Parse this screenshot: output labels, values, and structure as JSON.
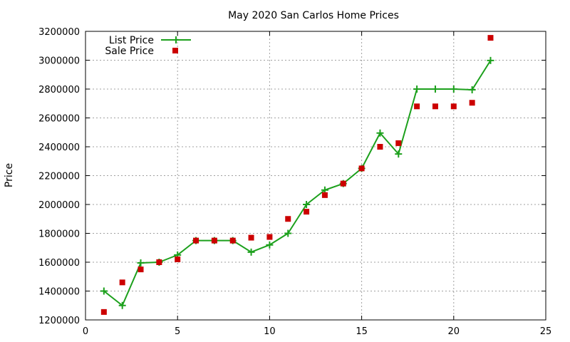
{
  "chart_data": {
    "type": "line",
    "title": "May 2020 San Carlos Home Prices",
    "xlabel": "",
    "ylabel": "Price",
    "xlim": [
      0,
      25
    ],
    "ylim": [
      1200000,
      3200000
    ],
    "xticks": [
      "0",
      "5",
      "10",
      "15",
      "20",
      "25"
    ],
    "yticks": [
      "1200000",
      "1400000",
      "1600000",
      "1800000",
      "2000000",
      "2200000",
      "2400000",
      "2600000",
      "2800000",
      "3000000",
      "3200000"
    ],
    "grid": true,
    "legend_position": "top-left",
    "series": [
      {
        "name": "List Price",
        "style": "line-with-plus-markers",
        "color": "#1ca01c",
        "x": [
          1,
          2,
          3,
          4,
          5,
          6,
          7,
          8,
          9,
          10,
          11,
          12,
          13,
          14,
          15,
          16,
          17,
          18,
          19,
          20,
          21,
          22
        ],
        "y": [
          1400000,
          1300000,
          1595000,
          1600000,
          1650000,
          1750000,
          1750000,
          1750000,
          1670000,
          1720000,
          1800000,
          2000000,
          2100000,
          2145000,
          2250000,
          2495000,
          2350000,
          2800000,
          2800000,
          2800000,
          2795000,
          2998000
        ]
      },
      {
        "name": "Sale Price",
        "style": "square-markers",
        "color": "#cc0000",
        "x": [
          1,
          2,
          3,
          4,
          5,
          6,
          7,
          8,
          9,
          10,
          11,
          12,
          13,
          14,
          15,
          16,
          17,
          18,
          19,
          20,
          21,
          22
        ],
        "y": [
          1255000,
          1460000,
          1550000,
          1600000,
          1620000,
          1750000,
          1750000,
          1750000,
          1770000,
          1775000,
          1900000,
          1950000,
          2065000,
          2145000,
          2250000,
          2400000,
          2425000,
          2680000,
          2680000,
          2680000,
          2705000,
          3155000
        ]
      }
    ]
  }
}
